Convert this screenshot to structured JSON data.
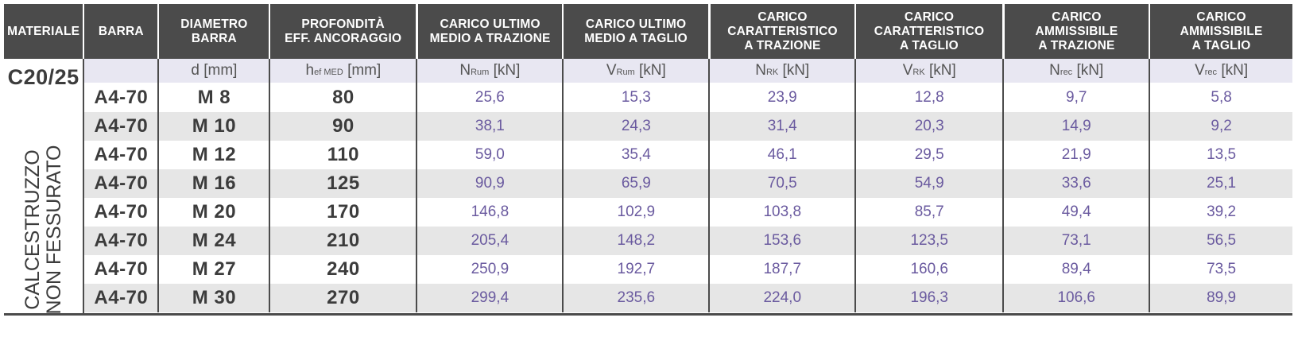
{
  "header": {
    "col_materiale": "MATERIALE",
    "col_barra": "BARRA",
    "col_diametro": [
      "DIAMETRO",
      "BARRA"
    ],
    "col_profondita": [
      "PROFONDITÀ",
      "EFF. ANCORAGGIO"
    ],
    "col_carico_ult_trazione": [
      "CARICO ULTIMO",
      "MEDIO A TRAZIONE"
    ],
    "col_carico_ult_taglio": [
      "CARICO ULTIMO",
      "MEDIO A TAGLIO"
    ],
    "col_caratt_trazione": [
      "CARICO",
      "CARATTERISTICO",
      "A TRAZIONE"
    ],
    "col_caratt_taglio": [
      "CARICO",
      "CARATTERISTICO",
      "A TAGLIO"
    ],
    "col_amm_trazione": [
      "CARICO",
      "AMMISSIBILE",
      "A TRAZIONE"
    ],
    "col_amm_taglio": [
      "CARICO",
      "AMMISSIBILE",
      "A TAGLIO"
    ]
  },
  "units": {
    "d": {
      "sym": "d",
      "sub": "",
      "unit": "[mm]"
    },
    "hef": {
      "sym": "h",
      "sub": "ef MED",
      "unit": "[mm]"
    },
    "nrum": {
      "sym": "N",
      "sub": "Rum",
      "unit": "[kN]"
    },
    "vrum": {
      "sym": "V",
      "sub": "Rum",
      "unit": "[kN]"
    },
    "nrk": {
      "sym": "N",
      "sub": "RK",
      "unit": "[kN]"
    },
    "vrk": {
      "sym": "V",
      "sub": "RK",
      "unit": "[kN]"
    },
    "nrec": {
      "sym": "N",
      "sub": "rec",
      "unit": "[kN]"
    },
    "vrec": {
      "sym": "V",
      "sub": "rec",
      "unit": "[kN]"
    }
  },
  "material": {
    "grade": "C20/25",
    "line1": "CALCESTRUZZO",
    "line2": "NON FESSURATO"
  },
  "rows": [
    {
      "barra": "A4-70",
      "diametro": "M 8",
      "profondita": "80",
      "nrum": "25,6",
      "vrum": "15,3",
      "nrk": "23,9",
      "vrk": "12,8",
      "nrec": "9,7",
      "vrec": "5,8"
    },
    {
      "barra": "A4-70",
      "diametro": "M 10",
      "profondita": "90",
      "nrum": "38,1",
      "vrum": "24,3",
      "nrk": "31,4",
      "vrk": "20,3",
      "nrec": "14,9",
      "vrec": "9,2"
    },
    {
      "barra": "A4-70",
      "diametro": "M 12",
      "profondita": "110",
      "nrum": "59,0",
      "vrum": "35,4",
      "nrk": "46,1",
      "vrk": "29,5",
      "nrec": "21,9",
      "vrec": "13,5"
    },
    {
      "barra": "A4-70",
      "diametro": "M 16",
      "profondita": "125",
      "nrum": "90,9",
      "vrum": "65,9",
      "nrk": "70,5",
      "vrk": "54,9",
      "nrec": "33,6",
      "vrec": "25,1"
    },
    {
      "barra": "A4-70",
      "diametro": "M 20",
      "profondita": "170",
      "nrum": "146,8",
      "vrum": "102,9",
      "nrk": "103,8",
      "vrk": "85,7",
      "nrec": "49,4",
      "vrec": "39,2"
    },
    {
      "barra": "A4-70",
      "diametro": "M 24",
      "profondita": "210",
      "nrum": "205,4",
      "vrum": "148,2",
      "nrk": "153,6",
      "vrk": "123,5",
      "nrec": "73,1",
      "vrec": "56,5"
    },
    {
      "barra": "A4-70",
      "diametro": "M 27",
      "profondita": "240",
      "nrum": "250,9",
      "vrum": "192,7",
      "nrk": "187,7",
      "vrk": "160,6",
      "nrec": "89,4",
      "vrec": "73,5"
    },
    {
      "barra": "A4-70",
      "diametro": "M 30",
      "profondita": "270",
      "nrum": "299,4",
      "vrum": "235,6",
      "nrk": "224,0",
      "vrk": "196,3",
      "nrec": "106,6",
      "vrec": "89,9"
    }
  ],
  "colors": {
    "header_bg": "#4b4b4b",
    "unit_row_bg": "#e8e7f2",
    "stripe_bg": "#e6e6e6",
    "value_text": "#6a5a9f",
    "label_text": "#3c3c3c"
  }
}
